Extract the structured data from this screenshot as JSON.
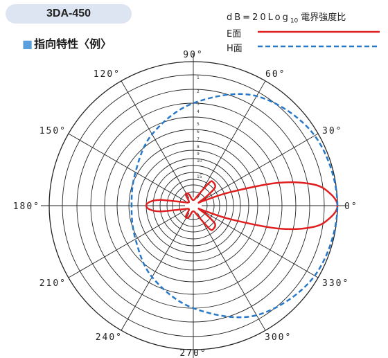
{
  "model": "3DA-450",
  "section_title": "指向特性〈例〉",
  "section_marker": "■",
  "formula": {
    "prefix": "dB=20Log",
    "subscript": "10",
    "suffix": "電界強度比"
  },
  "chart_data": {
    "type": "polar",
    "angle_labels": [
      {
        "deg": 0,
        "label": "0°"
      },
      {
        "deg": 30,
        "label": "30°"
      },
      {
        "deg": 60,
        "label": "60°"
      },
      {
        "deg": 90,
        "label": "90°"
      },
      {
        "deg": 120,
        "label": "120°"
      },
      {
        "deg": 150,
        "label": "150°"
      },
      {
        "deg": 180,
        "label": "180°"
      },
      {
        "deg": 210,
        "label": "210°"
      },
      {
        "deg": 240,
        "label": "240°"
      },
      {
        "deg": 270,
        "label": "270°"
      },
      {
        "deg": 300,
        "label": "300°"
      },
      {
        "deg": 330,
        "label": "330°"
      }
    ],
    "radial_labels": [
      "1",
      "2",
      "3",
      "4",
      "5",
      "6",
      "7",
      "8",
      "9",
      "10",
      "15"
    ],
    "series": [
      {
        "name": "E面",
        "color": "#e02020",
        "dash": "solid",
        "points": [
          [
            0,
            0
          ],
          [
            5,
            -0.5
          ],
          [
            10,
            -1.6
          ],
          [
            15,
            -4
          ],
          [
            20,
            -9
          ],
          [
            25,
            -25
          ],
          [
            30,
            -40
          ],
          [
            35,
            -18
          ],
          [
            40,
            -12
          ],
          [
            50,
            -11
          ],
          [
            55,
            -12
          ],
          [
            65,
            -25
          ],
          [
            80,
            -40
          ],
          [
            100,
            -40
          ],
          [
            110,
            -26
          ],
          [
            118,
            -20
          ],
          [
            125,
            -22
          ],
          [
            135,
            -40
          ],
          [
            150,
            -40
          ],
          [
            160,
            -30
          ],
          [
            170,
            -10
          ],
          [
            175,
            -8.5
          ],
          [
            180,
            -8
          ],
          [
            185,
            -8.5
          ],
          [
            190,
            -10
          ],
          [
            200,
            -30
          ],
          [
            210,
            -40
          ],
          [
            225,
            -40
          ],
          [
            235,
            -22
          ],
          [
            242,
            -20
          ],
          [
            250,
            -26
          ],
          [
            260,
            -40
          ],
          [
            280,
            -40
          ],
          [
            295,
            -25
          ],
          [
            305,
            -12
          ],
          [
            310,
            -11
          ],
          [
            320,
            -12
          ],
          [
            325,
            -18
          ],
          [
            330,
            -40
          ],
          [
            335,
            -25
          ],
          [
            340,
            -9
          ],
          [
            345,
            -4
          ],
          [
            350,
            -1.6
          ],
          [
            355,
            -0.5
          ]
        ]
      },
      {
        "name": "H面",
        "color": "#2878c8",
        "dash": "dashed",
        "points": [
          [
            0,
            0
          ],
          [
            30,
            -0.3
          ],
          [
            60,
            -1.3
          ],
          [
            90,
            -3
          ],
          [
            120,
            -4.5
          ],
          [
            150,
            -5.8
          ],
          [
            180,
            -6.3
          ],
          [
            210,
            -5.8
          ],
          [
            240,
            -4.5
          ],
          [
            270,
            -3
          ],
          [
            300,
            -1.3
          ],
          [
            330,
            -0.3
          ]
        ]
      }
    ]
  }
}
